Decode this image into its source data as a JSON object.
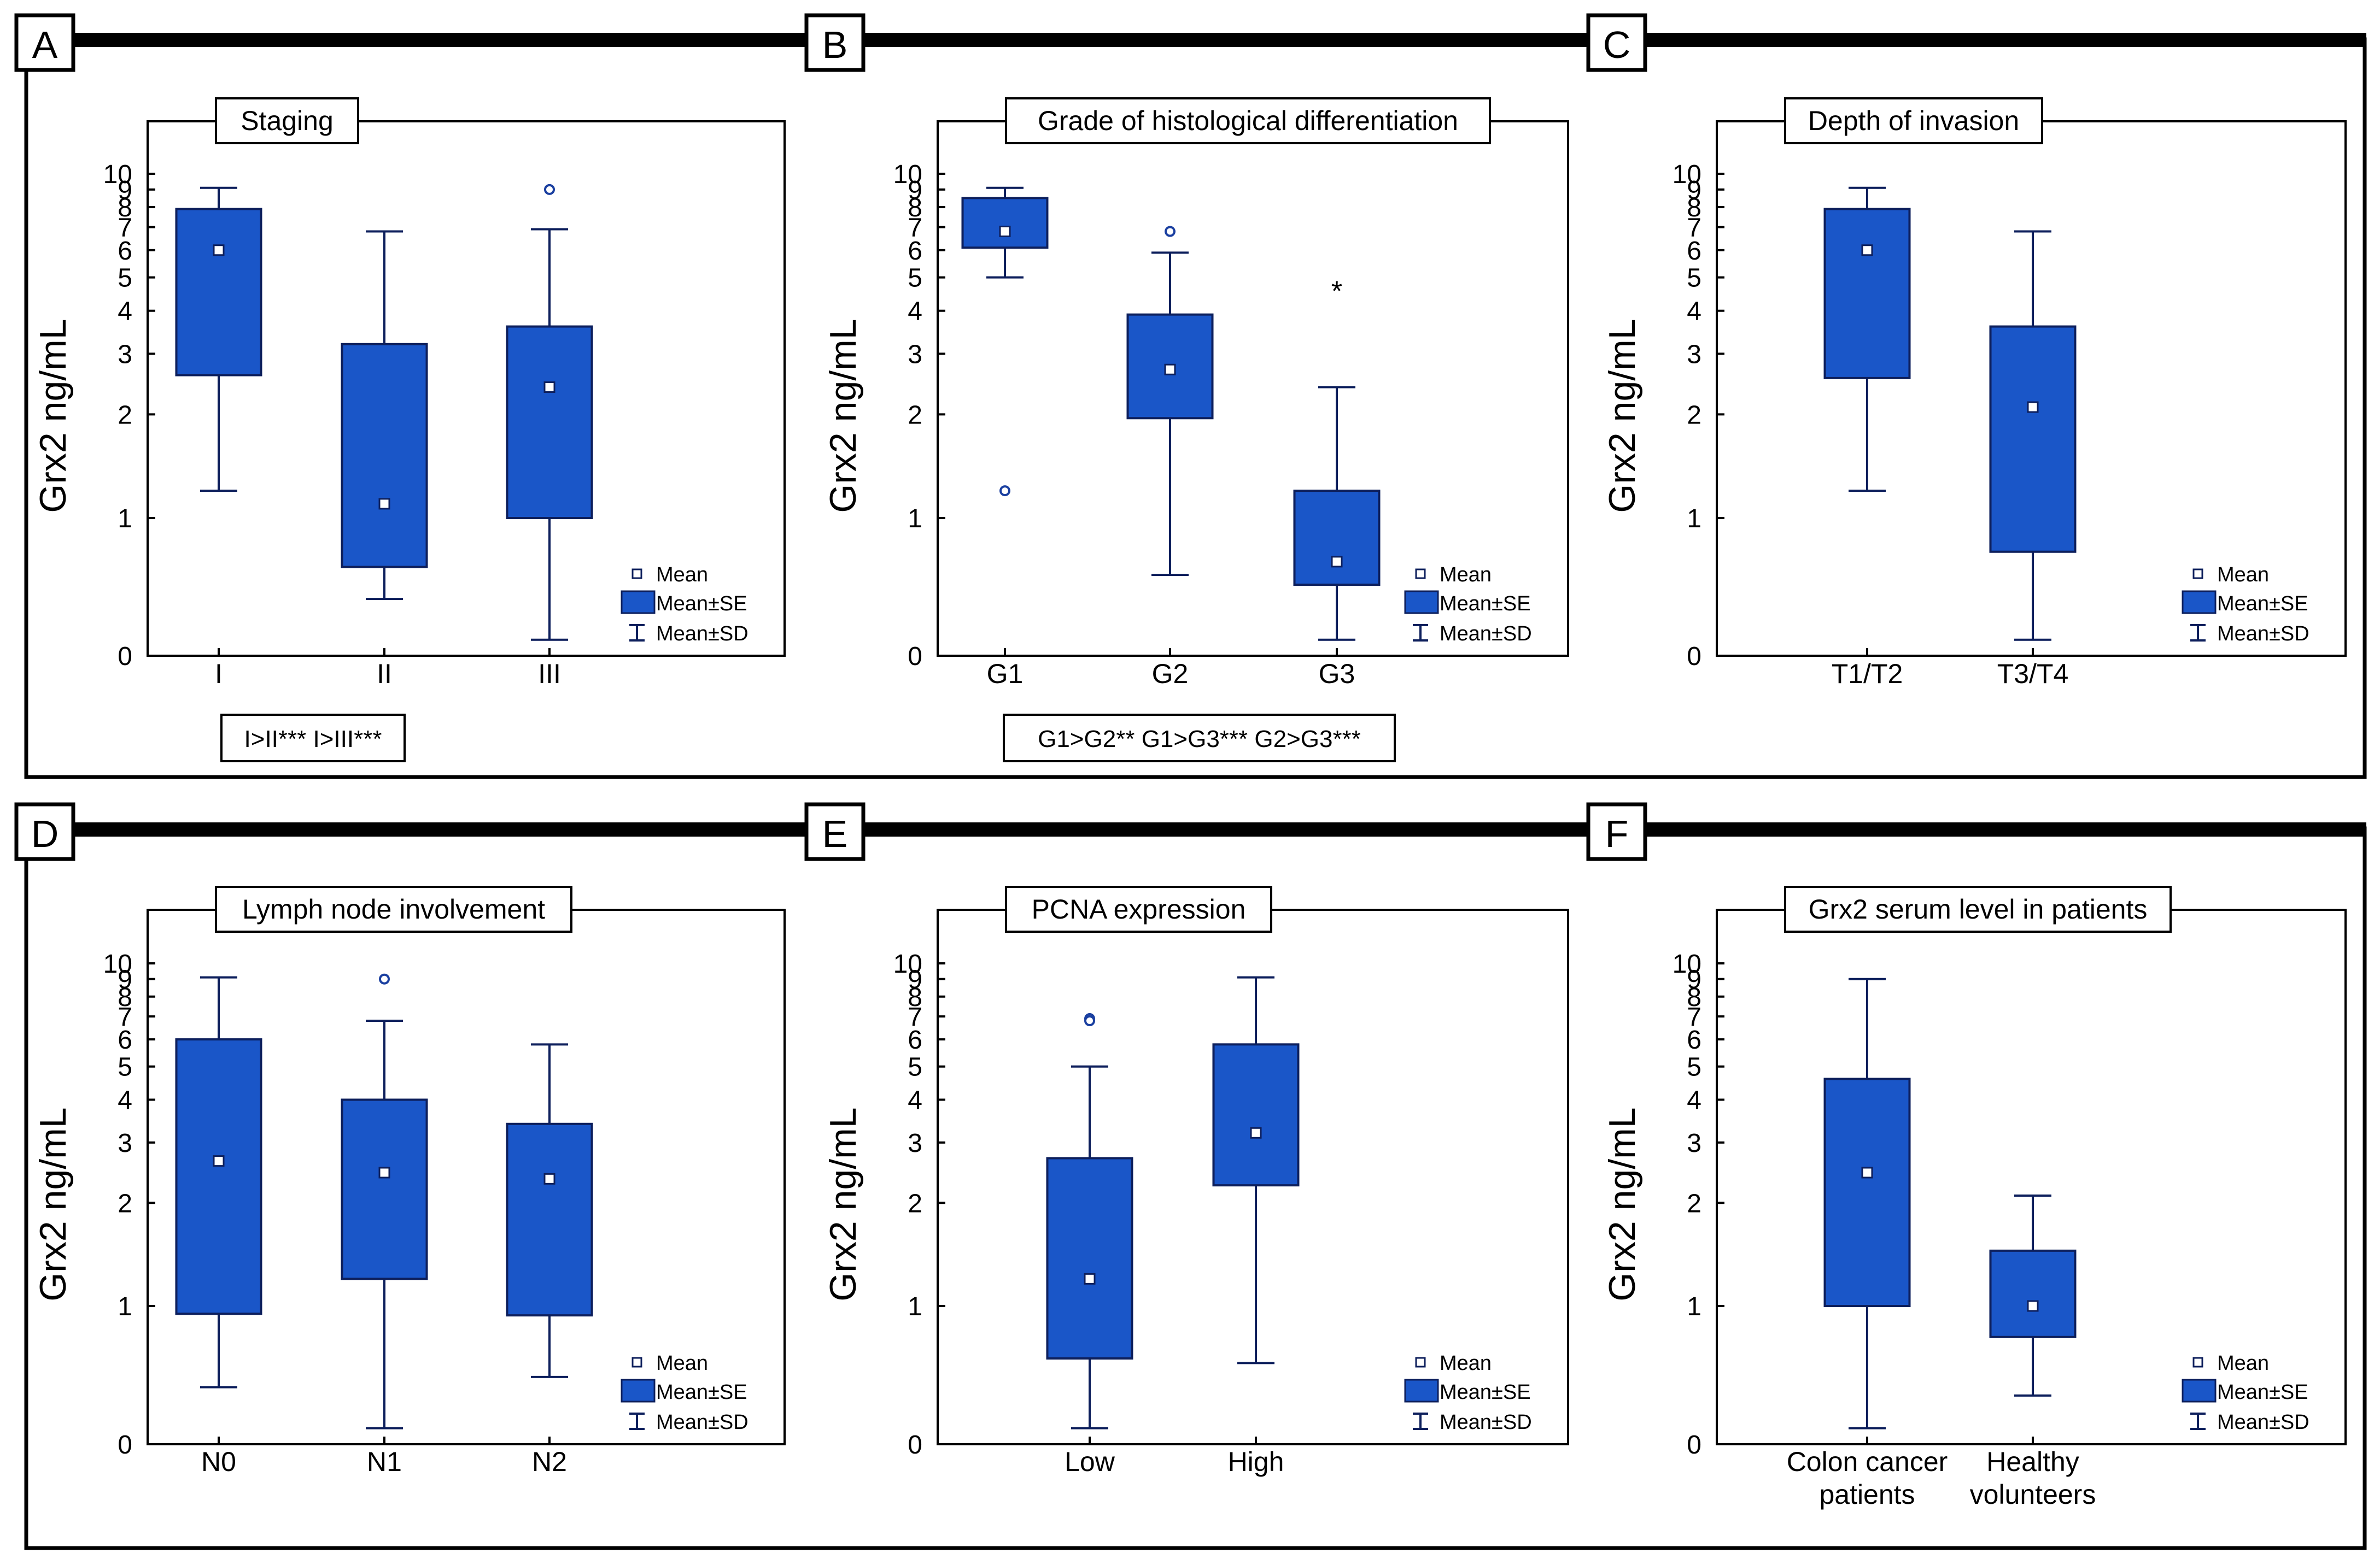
{
  "colors": {
    "box_fill": "#1a56c8",
    "box_stroke": "#0d1f5c",
    "whisker": "#0d1f5c",
    "outlier": "#1a3fa0",
    "frame": "#000000"
  },
  "legend": {
    "mean_label": "Mean",
    "se_label": "Mean±SE",
    "sd_label": "Mean±SD"
  },
  "chart_data": [
    {
      "type": "box",
      "panel_letter": "A",
      "title": "Staging",
      "ylabel": "Grx2 ng/mL",
      "y_ticks": [
        0,
        1,
        2,
        3,
        4,
        5,
        6,
        7,
        8,
        9,
        10
      ],
      "y_scale": "compressed (log-like) between 0 and 10",
      "categories": [
        "I",
        "II",
        "III"
      ],
      "boxes": [
        {
          "mean": 6.0,
          "se_low": 2.6,
          "se_high": 7.9,
          "sd_low": 1.2,
          "sd_high": 9.1,
          "outliers": []
        },
        {
          "mean": 1.1,
          "se_low": 0.45,
          "se_high": 3.2,
          "sd_low": 0.2,
          "sd_high": 6.8,
          "outliers": []
        },
        {
          "mean": 2.4,
          "se_low": 1.0,
          "se_high": 3.6,
          "sd_low": 0.02,
          "sd_high": 6.9,
          "outliers": [
            {
              "value": 9.0,
              "marker": "circle"
            }
          ]
        }
      ],
      "annotation": "I>II*** I>III***"
    },
    {
      "type": "box",
      "panel_letter": "B",
      "title": "Grade of histological differentiation",
      "ylabel": "Grx2 ng/mL",
      "y_ticks": [
        0,
        1,
        2,
        3,
        4,
        5,
        6,
        7,
        8,
        9,
        10
      ],
      "y_scale": "compressed (log-like) between 0 and 10",
      "categories": [
        "G1",
        "G2",
        "G3"
      ],
      "boxes": [
        {
          "mean": 6.8,
          "se_low": 6.1,
          "se_high": 8.5,
          "sd_low": 5.0,
          "sd_high": 9.1,
          "outliers": [
            {
              "value": 1.2,
              "marker": "circle"
            }
          ]
        },
        {
          "mean": 2.7,
          "se_low": 1.95,
          "se_high": 3.9,
          "sd_low": 0.38,
          "sd_high": 5.9,
          "outliers": [
            {
              "value": 6.8,
              "marker": "circle"
            }
          ]
        },
        {
          "mean": 0.5,
          "se_low": 0.3,
          "se_high": 1.2,
          "sd_low": 0.02,
          "sd_high": 2.4,
          "outliers": [
            {
              "value": 4.7,
              "marker": "asterisk"
            }
          ]
        }
      ],
      "annotation": "G1>G2** G1>G3*** G2>G3***"
    },
    {
      "type": "box",
      "panel_letter": "C",
      "title": "Depth of invasion",
      "ylabel": "Grx2 ng/mL",
      "y_ticks": [
        0,
        1,
        2,
        3,
        4,
        5,
        6,
        7,
        8,
        9,
        10
      ],
      "y_scale": "compressed (log-like) between 0 and 10",
      "categories": [
        "T1/T2",
        "T3/T4"
      ],
      "boxes": [
        {
          "mean": 6.0,
          "se_low": 2.55,
          "se_high": 7.9,
          "sd_low": 1.2,
          "sd_high": 9.1,
          "outliers": []
        },
        {
          "mean": 2.1,
          "se_low": 0.6,
          "se_high": 3.6,
          "sd_low": 0.02,
          "sd_high": 6.8,
          "outliers": []
        }
      ],
      "annotation": ""
    },
    {
      "type": "box",
      "panel_letter": "D",
      "title": "Lymph node involvement",
      "ylabel": "Grx2 ng/mL",
      "y_ticks": [
        0,
        1,
        2,
        3,
        4,
        5,
        6,
        7,
        8,
        9,
        10
      ],
      "y_scale": "compressed (log-like) between 0 and 10",
      "categories": [
        "N0",
        "N1",
        "N2"
      ],
      "boxes": [
        {
          "mean": 2.65,
          "se_low": 0.9,
          "se_high": 6.0,
          "sd_low": 0.2,
          "sd_high": 9.1,
          "outliers": []
        },
        {
          "mean": 2.45,
          "se_low": 1.2,
          "se_high": 4.0,
          "sd_low": 0.02,
          "sd_high": 6.8,
          "outliers": [
            {
              "value": 9.0,
              "marker": "circle"
            }
          ]
        },
        {
          "mean": 2.35,
          "se_low": 0.88,
          "se_high": 3.4,
          "sd_low": 0.27,
          "sd_high": 5.8,
          "outliers": []
        }
      ],
      "annotation": ""
    },
    {
      "type": "box",
      "panel_letter": "E",
      "title": "PCNA expression",
      "ylabel": "Grx2 ng/mL",
      "y_ticks": [
        0,
        1,
        2,
        3,
        4,
        5,
        6,
        7,
        8,
        9,
        10
      ],
      "y_scale": "compressed (log-like) between 0 and 10",
      "categories": [
        "Low",
        "High"
      ],
      "boxes": [
        {
          "mean": 1.2,
          "se_low": 0.42,
          "se_high": 2.7,
          "sd_low": 0.02,
          "sd_high": 5.0,
          "outliers": [
            {
              "value": 6.9,
              "marker": "circle"
            },
            {
              "value": 6.8,
              "marker": "circle"
            }
          ]
        },
        {
          "mean": 3.2,
          "se_low": 2.25,
          "se_high": 5.8,
          "sd_low": 0.38,
          "sd_high": 9.1,
          "outliers": []
        }
      ],
      "annotation": ""
    },
    {
      "type": "box",
      "panel_letter": "F",
      "title": "Grx2 serum level in patients",
      "ylabel": "Grx2 ng/mL",
      "y_ticks": [
        0,
        1,
        2,
        3,
        4,
        5,
        6,
        7,
        8,
        9,
        10
      ],
      "y_scale": "compressed (log-like) between 0 and 10",
      "categories": [
        "Colon cancer patients",
        "Healthy volunteers"
      ],
      "category_lines": [
        [
          "Colon cancer",
          "patients"
        ],
        [
          "Healthy",
          "volunteers"
        ]
      ],
      "boxes": [
        {
          "mean": 2.45,
          "se_low": 1.0,
          "se_high": 4.6,
          "sd_low": 0.02,
          "sd_high": 9.0,
          "outliers": []
        },
        {
          "mean": 1.0,
          "se_low": 0.63,
          "se_high": 1.45,
          "sd_low": 0.15,
          "sd_high": 2.1,
          "outliers": []
        }
      ],
      "annotation": ""
    }
  ]
}
